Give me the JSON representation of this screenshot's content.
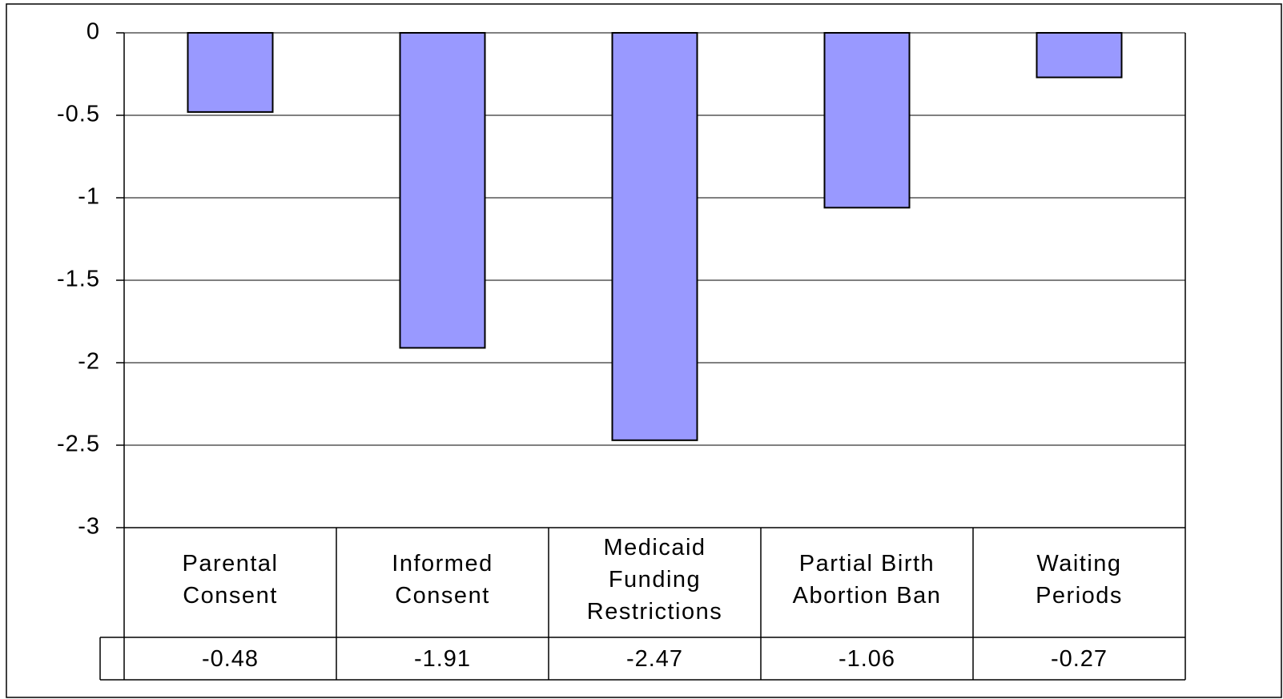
{
  "chart_data": {
    "type": "bar",
    "categories": [
      "Parental\nConsent",
      "Informed\nConsent",
      "Medicaid\nFunding\nRestrictions",
      "Partial Birth\nAbortion Ban",
      "Waiting\nPeriods"
    ],
    "values": [
      -0.48,
      -1.91,
      -2.47,
      -1.06,
      -0.27
    ],
    "color": "#9999ff",
    "ylim": [
      -3,
      0
    ],
    "yticks": [
      0,
      -0.5,
      -1,
      -1.5,
      -2,
      -2.5,
      -3
    ],
    "grid": true
  }
}
